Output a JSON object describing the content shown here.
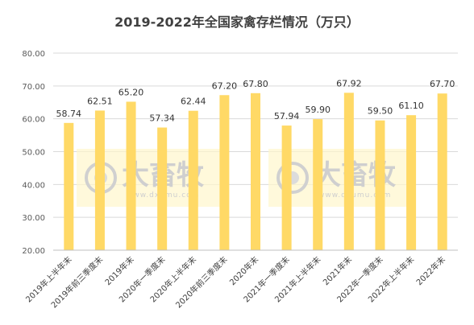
{
  "chart_data": {
    "type": "bar",
    "title": "2019-2022年全国家禽存栏情况（万只）",
    "categories": [
      "2019年上半年末",
      "2019年前三季度末",
      "2019年末",
      "2020年一季度末",
      "2020年上半年末",
      "2020年前三季度末",
      "2020年末",
      "2021年一季度末",
      "2021年上半年末",
      "2021年末",
      "2022年一季度末",
      "2022年上半年末",
      "2022年末"
    ],
    "values": [
      58.74,
      62.51,
      65.2,
      57.34,
      62.44,
      67.2,
      67.8,
      57.94,
      59.9,
      67.92,
      59.5,
      61.1,
      67.7
    ],
    "value_labels": [
      "58.74",
      "62.51",
      "65.20",
      "57.34",
      "62.44",
      "67.20",
      "67.80",
      "57.94",
      "59.90",
      "67.92",
      "59.50",
      "61.10",
      "67.70"
    ],
    "yticks": [
      "20.00",
      "30.00",
      "40.00",
      "50.00",
      "60.00",
      "70.00",
      "80.00"
    ],
    "ylim": [
      20,
      80
    ],
    "grid": true,
    "bar_color": "#FFD966"
  },
  "watermark": {
    "text": "大畜牧",
    "subtext": "www.dxumu.com"
  }
}
